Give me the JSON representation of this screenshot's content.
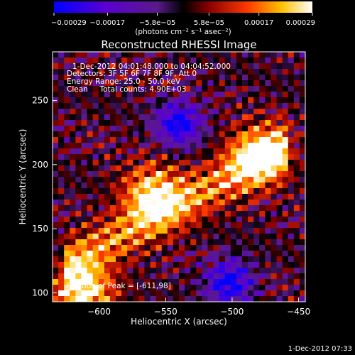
{
  "chart_data": {
    "type": "heatmap",
    "title": "Reconstructed RHESSI Image",
    "xlabel": "Heliocentric X (arcsec)",
    "ylabel": "Heliocentric Y (arcsec)",
    "xlim": [
      -635,
      -445
    ],
    "ylim": [
      93,
      288
    ],
    "x_ticks": [
      -600,
      -550,
      -500,
      -450
    ],
    "x_tick_labels": [
      "−600",
      "−550",
      "−500",
      "−450"
    ],
    "y_ticks": [
      100,
      150,
      200,
      250
    ],
    "y_tick_labels": [
      "100",
      "150",
      "200",
      "250"
    ],
    "colorbar": {
      "min": -0.00029,
      "max": 0.00029,
      "ticks": [
        -0.00029,
        -0.00017,
        -5.8e-05,
        5.8e-05,
        0.00017,
        0.00029
      ],
      "tick_labels": [
        "−0.00029",
        "−0.00017",
        "−5.8e−05",
        "5.8e−05",
        "0.00017",
        "0.00029"
      ],
      "unit_label": "(photons cm⁻² s⁻¹ asec⁻²)"
    },
    "annotations": {
      "time_range": "1-Dec-2012 04:01:48.000 to 04:04:52.000",
      "detectors": "Detectors: 3F 5F 6F 7F 8F 9F, Att 0",
      "energy": "Energy Range: 25.0 - 50.0 keV",
      "clean": "Clean     Total counts: 4.90E+03",
      "peak": "Position of Peak = [-611,98]"
    },
    "features": [
      {
        "x": -612,
        "y": 100,
        "value": 0.00029
      },
      {
        "x": -560,
        "y": 178,
        "value": 0.00025
      },
      {
        "x": -480,
        "y": 208,
        "value": 0.00024
      },
      {
        "x": -540,
        "y": 232,
        "value": -0.00029
      },
      {
        "x": -502,
        "y": 108,
        "value": -0.00029
      }
    ]
  },
  "footer": {
    "timestamp": "1-Dec-2012 07:33"
  }
}
